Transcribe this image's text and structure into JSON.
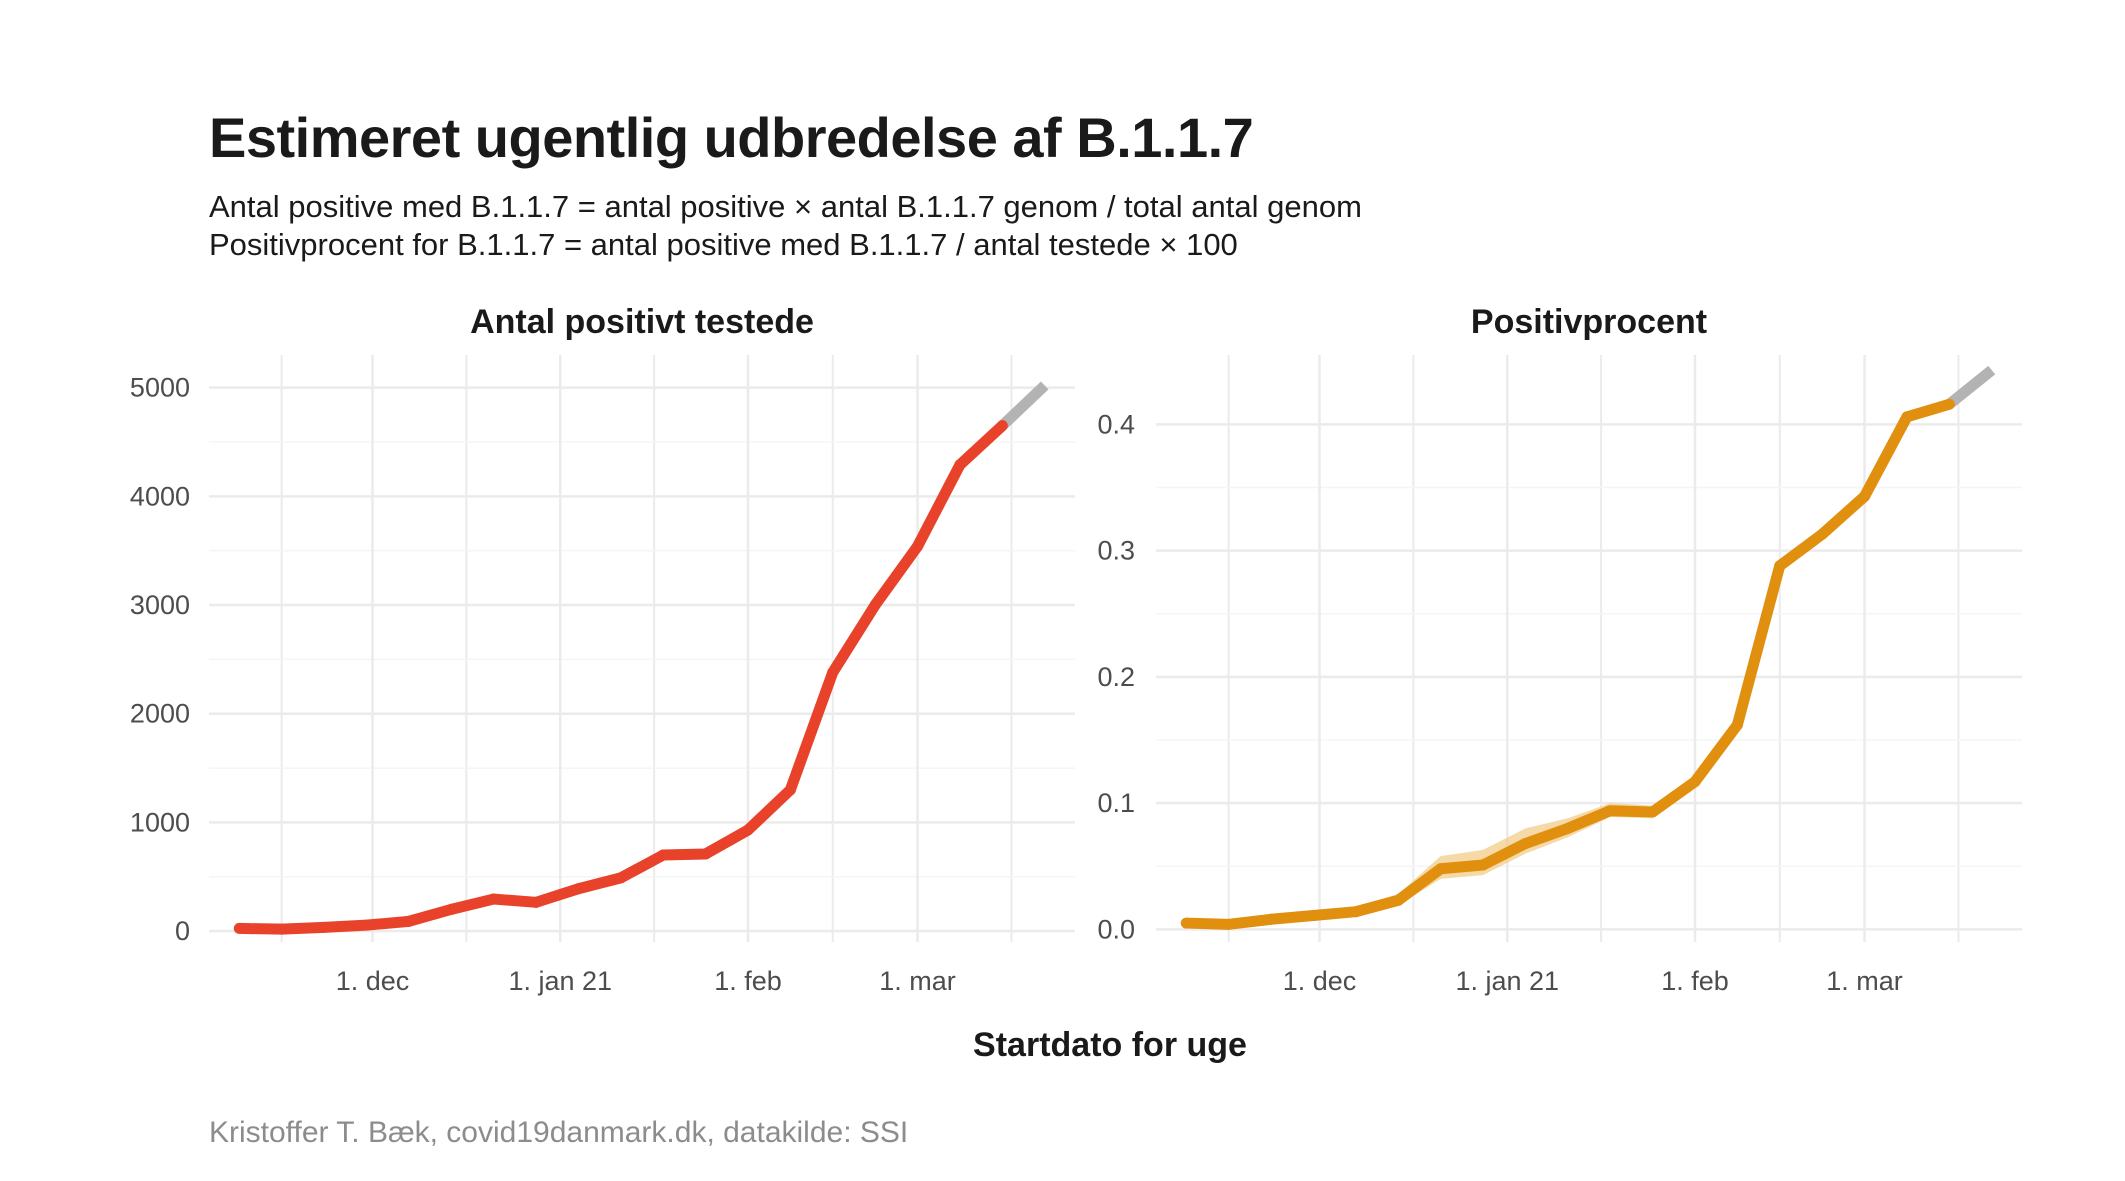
{
  "title": "Estimeret ugentlig udbredelse af B.1.1.7",
  "subtitle_lines": [
    "Antal positive med B.1.1.7 = antal positive × antal B.1.1.7 genom / total antal genom",
    "Positivprocent for B.1.1.7 = antal positive med B.1.1.7 / antal testede × 100"
  ],
  "xlabel": "Startdato for uge",
  "caption": "Kristoffer T. Bæk, covid19danmark.dk, datakilde: SSI",
  "colors": {
    "count_line": "#e8432a",
    "count_band": "#f4a090",
    "pct_line": "#e0900e",
    "pct_band": "#f2cc8a",
    "provisional": "#b3b3b3",
    "grid": "#ebebeb"
  },
  "chart_data": [
    {
      "type": "line",
      "title": "Antal positivt testede",
      "x_ticks": [
        "1. dec",
        "1. jan 21",
        "1. feb",
        "1. mar"
      ],
      "x": [
        "2020-11-09",
        "2020-11-16",
        "2020-11-23",
        "2020-11-30",
        "2020-12-07",
        "2020-12-14",
        "2020-12-21",
        "2020-12-28",
        "2021-01-04",
        "2021-01-11",
        "2021-01-18",
        "2021-01-25",
        "2021-02-01",
        "2021-02-08",
        "2021-02-15",
        "2021-02-22",
        "2021-03-01",
        "2021-03-08",
        "2021-03-15"
      ],
      "values": [
        25,
        18,
        35,
        55,
        90,
        200,
        295,
        265,
        390,
        490,
        700,
        710,
        930,
        1300,
        2380,
        3000,
        3540,
        4290,
        4650
      ],
      "band_lower": [
        15,
        10,
        25,
        45,
        80,
        180,
        265,
        245,
        370,
        470,
        680,
        690,
        910,
        1280,
        2360,
        2980,
        3520,
        4270,
        4630
      ],
      "band_upper": [
        35,
        26,
        45,
        65,
        100,
        225,
        340,
        300,
        410,
        510,
        720,
        730,
        950,
        1320,
        2400,
        3020,
        3560,
        4310,
        4670
      ],
      "provisional": {
        "x": [
          "2021-03-15",
          "2021-03-22"
        ],
        "values": [
          4650,
          5020
        ]
      },
      "y_ticks": [
        0,
        1000,
        2000,
        3000,
        4000,
        5000
      ],
      "ylim": [
        -100,
        5300
      ],
      "xlim": [
        "2020-11-04",
        "2021-03-27"
      ],
      "grid": true
    },
    {
      "type": "line",
      "title": "Positivprocent",
      "x_ticks": [
        "1. dec",
        "1. jan 21",
        "1. feb",
        "1. mar"
      ],
      "x": [
        "2020-11-09",
        "2020-11-16",
        "2020-11-23",
        "2020-11-30",
        "2020-12-07",
        "2020-12-14",
        "2020-12-21",
        "2020-12-28",
        "2021-01-04",
        "2021-01-11",
        "2021-01-18",
        "2021-01-25",
        "2021-02-01",
        "2021-02-08",
        "2021-02-15",
        "2021-02-22",
        "2021-03-01",
        "2021-03-08",
        "2021-03-15"
      ],
      "values": [
        0.005,
        0.004,
        0.008,
        0.011,
        0.014,
        0.023,
        0.048,
        0.051,
        0.068,
        0.08,
        0.094,
        0.093,
        0.117,
        0.162,
        0.288,
        0.313,
        0.343,
        0.406,
        0.416
      ],
      "band_lower": [
        0.002,
        0.002,
        0.005,
        0.008,
        0.011,
        0.019,
        0.04,
        0.043,
        0.06,
        0.073,
        0.089,
        0.088,
        0.113,
        0.158,
        0.284,
        0.309,
        0.339,
        0.402,
        0.412
      ],
      "band_upper": [
        0.009,
        0.007,
        0.012,
        0.015,
        0.018,
        0.028,
        0.058,
        0.063,
        0.08,
        0.088,
        0.1,
        0.098,
        0.121,
        0.166,
        0.292,
        0.317,
        0.347,
        0.41,
        0.42
      ],
      "provisional": {
        "x": [
          "2021-03-15",
          "2021-03-22"
        ],
        "values": [
          0.416,
          0.443
        ]
      },
      "y_ticks": [
        "0.0",
        "0.1",
        "0.2",
        "0.3",
        "0.4"
      ],
      "ylim": [
        -0.01,
        0.455
      ],
      "xlim": [
        "2020-11-04",
        "2021-03-27"
      ],
      "grid": true
    }
  ]
}
